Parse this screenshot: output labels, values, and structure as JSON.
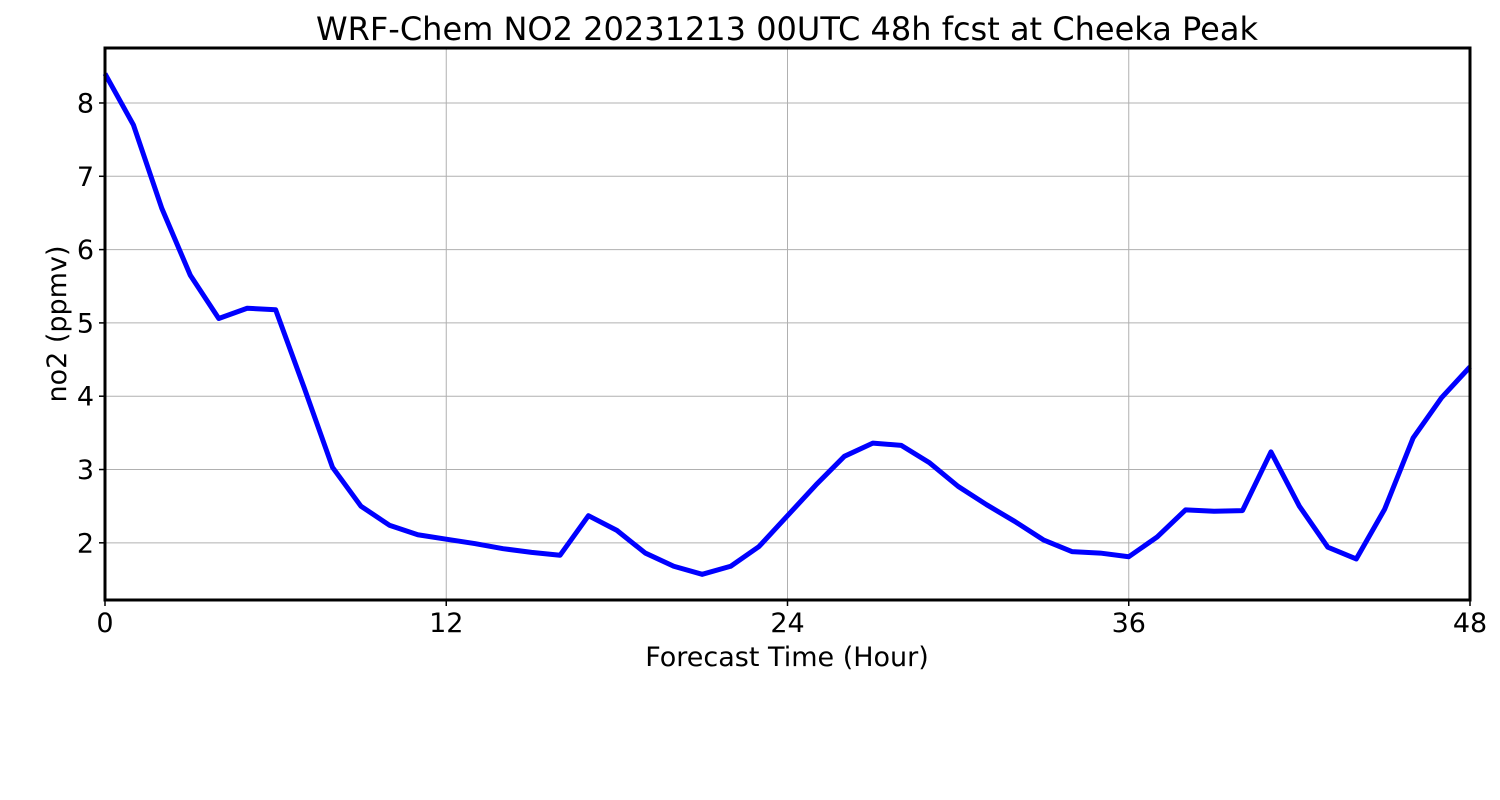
{
  "chart_data": {
    "type": "line",
    "title": "WRF-Chem NO2  20231213 00UTC 48h fcst at Cheeka Peak",
    "xlabel": "Forecast Time (Hour)",
    "ylabel": "no2  (ppmv)",
    "xlim": [
      0,
      48
    ],
    "ylim": [
      1.22,
      8.75
    ],
    "xticks": [
      0,
      12,
      24,
      36,
      48
    ],
    "yticks": [
      2,
      3,
      4,
      5,
      6,
      7,
      8
    ],
    "grid": true,
    "legend": "none",
    "series": [
      {
        "color": "#0000ff",
        "x": [
          0,
          1,
          2,
          3,
          4,
          5,
          6,
          7,
          8,
          9,
          10,
          11,
          12,
          13,
          14,
          15,
          16,
          17,
          18,
          19,
          20,
          21,
          22,
          23,
          24,
          25,
          26,
          27,
          28,
          29,
          30,
          31,
          32,
          33,
          34,
          35,
          36,
          37,
          38,
          39,
          40,
          41,
          42,
          43,
          44,
          45,
          46,
          47,
          48
        ],
        "values": [
          8.4,
          7.7,
          6.56,
          5.65,
          5.06,
          5.2,
          5.18,
          4.12,
          3.03,
          2.5,
          2.24,
          2.11,
          2.05,
          1.99,
          1.92,
          1.87,
          1.83,
          2.37,
          2.17,
          1.86,
          1.68,
          1.57,
          1.68,
          1.95,
          2.37,
          2.79,
          3.18,
          3.36,
          3.33,
          3.09,
          2.77,
          2.52,
          2.29,
          2.04,
          1.88,
          1.86,
          1.81,
          2.08,
          2.45,
          2.43,
          2.44,
          3.24,
          2.5,
          1.94,
          1.78,
          2.46,
          3.43,
          3.98,
          4.4
        ]
      }
    ]
  }
}
